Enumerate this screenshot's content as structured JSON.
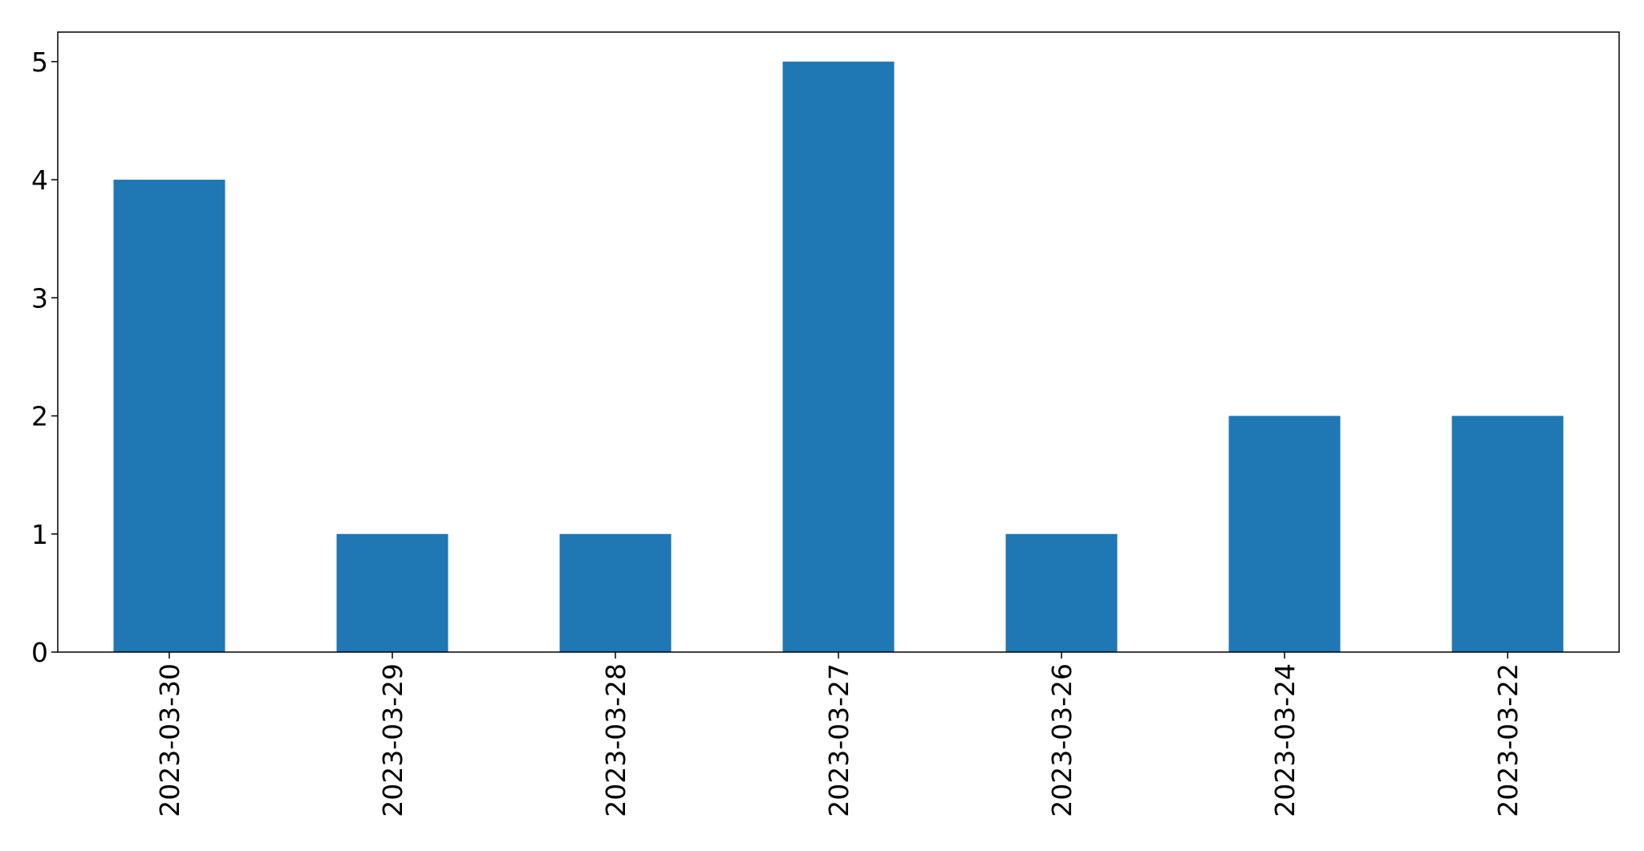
{
  "chart_data": {
    "type": "bar",
    "title": "",
    "xlabel": "",
    "ylabel": "",
    "categories": [
      "2023-03-30",
      "2023-03-29",
      "2023-03-28",
      "2023-03-27",
      "2023-03-26",
      "2023-03-24",
      "2023-03-22"
    ],
    "values": [
      4,
      1,
      1,
      5,
      1,
      2,
      2
    ],
    "ylim": [
      0,
      5.25
    ],
    "yticks": [
      0,
      1,
      2,
      3,
      4,
      5
    ],
    "bar_color": "#1f77b4",
    "grid": false,
    "legend": "none",
    "x_tick_rotation": "vertical"
  }
}
